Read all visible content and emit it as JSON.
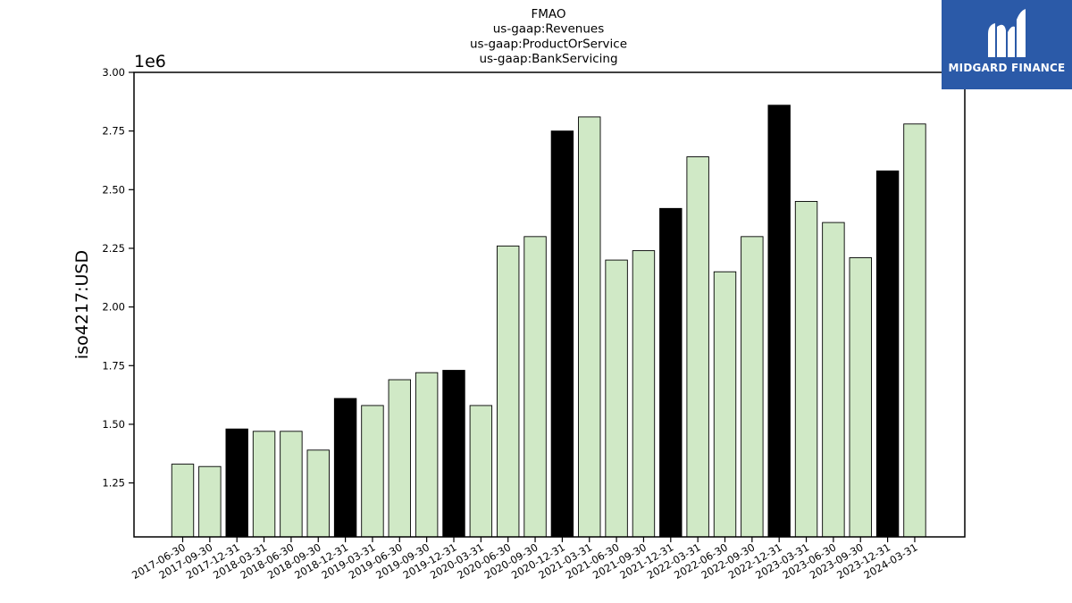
{
  "chart_data": {
    "type": "bar",
    "title_lines": [
      "FMAO",
      "us-gaap:Revenues",
      "us-gaap:ProductOrService",
      "us-gaap:BankServicing"
    ],
    "xlabel": "",
    "ylabel": "iso4217:USD",
    "y_offset_label": "1e6",
    "ylim": [
      1.02,
      3.0
    ],
    "yticks": [
      "1.25",
      "1.50",
      "1.75",
      "2.00",
      "2.25",
      "2.50",
      "2.75",
      "3.00"
    ],
    "ytick_values": [
      1.25,
      1.5,
      1.75,
      2.0,
      2.25,
      2.5,
      2.75,
      3.0
    ],
    "categories": [
      "2017-06-30",
      "2017-09-30",
      "2017-12-31",
      "2018-03-31",
      "2018-06-30",
      "2018-09-30",
      "2018-12-31",
      "2019-03-31",
      "2019-06-30",
      "2019-09-30",
      "2019-12-31",
      "2020-03-31",
      "2020-06-30",
      "2020-09-30",
      "2020-12-31",
      "2021-03-31",
      "2021-06-30",
      "2021-09-30",
      "2021-12-31",
      "2022-03-31",
      "2022-06-30",
      "2022-09-30",
      "2022-12-31",
      "2023-03-31",
      "2023-06-30",
      "2023-09-30",
      "2023-12-31",
      "2024-03-31"
    ],
    "values": [
      1.33,
      1.32,
      1.48,
      1.47,
      1.47,
      1.39,
      1.61,
      1.58,
      1.69,
      1.72,
      1.73,
      1.58,
      2.26,
      2.3,
      2.75,
      2.81,
      2.2,
      2.24,
      2.42,
      2.64,
      2.15,
      2.3,
      2.86,
      2.45,
      2.36,
      2.21,
      2.58,
      2.78
    ],
    "year_end_highlight": [
      false,
      false,
      true,
      false,
      false,
      false,
      true,
      false,
      false,
      false,
      true,
      false,
      false,
      false,
      true,
      false,
      false,
      false,
      true,
      false,
      false,
      false,
      true,
      false,
      false,
      false,
      true,
      false
    ],
    "colors": {
      "bar_fill": "#d0e9c6",
      "highlight_fill": "#000000",
      "bar_edge": "#000000"
    },
    "grid": false,
    "legend": "none"
  },
  "logo": {
    "text": "MIDGARD FINANCE",
    "background": "#2b5aa8"
  }
}
